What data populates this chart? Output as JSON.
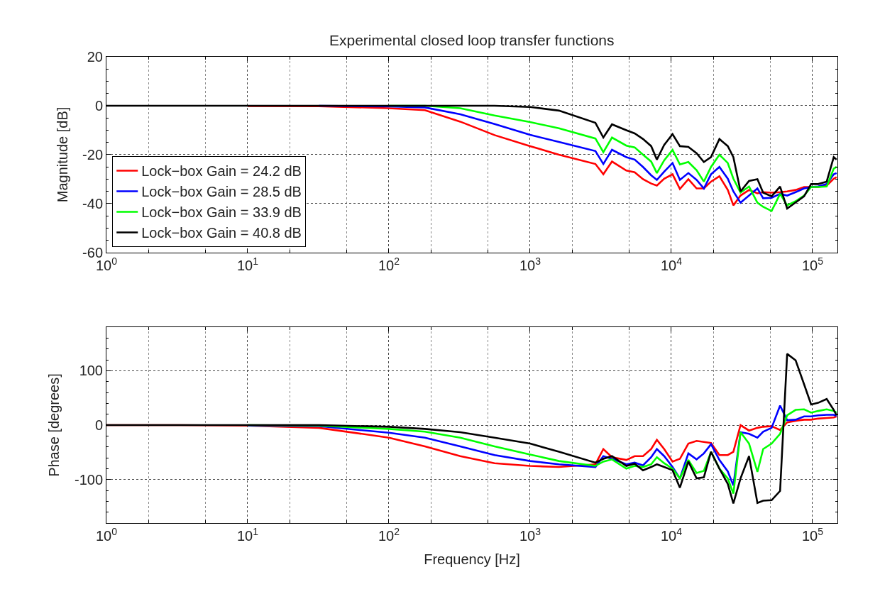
{
  "chart_data": [
    {
      "type": "line",
      "title": "Experimental closed loop transfer functions",
      "ylabel": "Magnitude [dB]",
      "log": "x",
      "grid": true,
      "legend": "bottom left",
      "line_style": "solid",
      "xlim": [
        1,
        150000
      ],
      "xticks": [
        {
          "value": 1,
          "label": "10$^{0}$"
        },
        {
          "value": 10,
          "label": "10$^{1}$"
        },
        {
          "value": 100,
          "label": "10$^{2}$"
        },
        {
          "value": 1000,
          "label": "10$^{3}$"
        },
        {
          "value": 10000,
          "label": "10$^{4}$"
        },
        {
          "value": 100000,
          "label": "10$^{5}$"
        }
      ],
      "ylim": [
        -60,
        20
      ],
      "yticks": [
        -60,
        -40,
        -20,
        0,
        20
      ],
      "x": [
        1,
        3.2,
        10,
        32,
        100,
        180,
        320,
        560,
        1000,
        1600,
        2900,
        3300,
        3800,
        4800,
        5500,
        6300,
        7200,
        7900,
        8900,
        10200,
        11500,
        13200,
        15100,
        17000,
        19100,
        21900,
        25100,
        27500,
        30900,
        35500,
        40700,
        44700,
        51300,
        58900,
        66100,
        75900,
        87100,
        97700,
        109600,
        125900,
        141300,
        147900
      ],
      "series": [
        {
          "name": "Lock−box Gain = 24.2 dB",
          "color": "#ff0000",
          "values": [
            null,
            null,
            -0.1,
            -0.2,
            -1,
            -1.8,
            -6.5,
            -12,
            -16.5,
            -20,
            -23.8,
            -28,
            -22.8,
            -26.5,
            -27.2,
            -30,
            -31.8,
            -32.6,
            -29.8,
            -28,
            -34,
            -30,
            -33.8,
            -33.8,
            -31,
            -28.8,
            -34.4,
            -40.7,
            -36.7,
            -34.4,
            -35.8,
            -35.3,
            -35.5,
            -35.3,
            -35,
            -34.4,
            -33.2,
            -33.2,
            -33.2,
            -32.6,
            -29.8,
            -29.2
          ]
        },
        {
          "name": "Lock−box Gain = 28.5 dB",
          "color": "#0000ff",
          "values": [
            null,
            null,
            null,
            0,
            -0.3,
            -0.7,
            -3.5,
            -7.5,
            -11.9,
            -14.8,
            -18.5,
            -23.8,
            -18,
            -21,
            -22,
            -25,
            -28.4,
            -30.3,
            -26.9,
            -23.4,
            -30.3,
            -27.5,
            -30.3,
            -33.8,
            -28,
            -25,
            -29.8,
            -35,
            -39.6,
            -36.7,
            -33.8,
            -37.8,
            -37.6,
            -36,
            -36.7,
            -35.3,
            -33.8,
            -33.2,
            -33,
            -32,
            -28,
            -27.5
          ]
        },
        {
          "name": "Lock−box Gain = 33.9 dB",
          "color": "#00ff00",
          "values": [
            null,
            null,
            null,
            null,
            0,
            0,
            -1,
            -4,
            -6.7,
            -9.2,
            -13.4,
            -19,
            -13,
            -16.3,
            -17,
            -20,
            -22.8,
            -27.5,
            -22.3,
            -18,
            -24,
            -23,
            -26.3,
            -31,
            -25,
            -20,
            -23.4,
            -29.8,
            -35.5,
            -33,
            -39.6,
            -41.3,
            -43,
            -36,
            -40.7,
            -39,
            -36.7,
            -33.2,
            -33.2,
            -33,
            -25.7,
            -25
          ]
        },
        {
          "name": "Lock−box Gain = 40.8 dB",
          "color": "#000000",
          "values": [
            0,
            0,
            0,
            0,
            0,
            0,
            0,
            0,
            -0.5,
            -2,
            -7,
            -13,
            -7.6,
            -10,
            -11.3,
            -13.6,
            -16.5,
            -22,
            -16,
            -11.6,
            -16.5,
            -16.8,
            -19.4,
            -23,
            -21,
            -13.6,
            -16.5,
            -21,
            -35,
            -30.7,
            -30,
            -35.5,
            -37,
            -33,
            -42,
            -39.5,
            -37,
            -32,
            -32,
            -31,
            -21,
            -22
          ]
        }
      ]
    },
    {
      "type": "line",
      "xlabel": "Frequency [Hz]",
      "ylabel": "Phase [degrees]",
      "log": "x",
      "grid": true,
      "line_style": "solid",
      "xlim": [
        1,
        150000
      ],
      "xticks": [
        {
          "value": 1,
          "label": "10$^{0}$"
        },
        {
          "value": 10,
          "label": "10$^{1}$"
        },
        {
          "value": 100,
          "label": "10$^{2}$"
        },
        {
          "value": 1000,
          "label": "10$^{3}$"
        },
        {
          "value": 10000,
          "label": "10$^{4}$"
        },
        {
          "value": 100000,
          "label": "10$^{5}$"
        }
      ],
      "ylim": [
        -180,
        180
      ],
      "yticks": [
        -100,
        0,
        100
      ],
      "x": [
        1,
        3.2,
        10,
        32,
        100,
        180,
        320,
        560,
        1000,
        1600,
        2900,
        3300,
        3800,
        4800,
        5500,
        6300,
        7200,
        7900,
        8900,
        10200,
        11500,
        13200,
        15100,
        17000,
        19100,
        21900,
        25100,
        27500,
        30900,
        35500,
        40700,
        44700,
        51300,
        58900,
        66100,
        75900,
        87100,
        97700,
        109600,
        125900,
        141300,
        147900
      ],
      "series": [
        {
          "color": "#ff0000",
          "values": [
            0,
            0,
            -1,
            -5,
            -23,
            -39,
            -57,
            -70,
            -75,
            -77,
            -72,
            -44,
            -59,
            -64,
            -57,
            -57,
            -44,
            -27,
            -44,
            -67,
            -62,
            -34,
            -29,
            -31,
            -33,
            -55,
            -55,
            -49,
            0,
            -10,
            -5,
            -3,
            -2,
            -9,
            5,
            8,
            10,
            10,
            12,
            13,
            14,
            16
          ]
        },
        {
          "color": "#0000ff",
          "values": [
            null,
            null,
            -1,
            -2,
            -14,
            -23,
            -39,
            -55,
            -66,
            -72,
            -77,
            -57,
            -62,
            -72,
            -69,
            -74,
            -59,
            -44,
            -57,
            -77,
            -98,
            -52,
            -63,
            -52,
            -35,
            -64,
            -85,
            -111,
            -13,
            -16,
            -23,
            -12,
            -5,
            36,
            9,
            10,
            16,
            16,
            18,
            19,
            19,
            17
          ]
        },
        {
          "color": "#00ff00",
          "values": [
            null,
            null,
            0,
            -1,
            -7,
            -12,
            -23,
            -39,
            -54,
            -66,
            -75,
            -67,
            -63,
            -80,
            -75,
            -77,
            -72,
            -59,
            -70,
            -80,
            -98,
            -64,
            -88,
            -84,
            -49,
            -80,
            -98,
            -126,
            -13,
            -34,
            -86,
            -44,
            -34,
            -16,
            18,
            28,
            29,
            23,
            26,
            29,
            26,
            23
          ]
        },
        {
          "color": "#000000",
          "values": [
            0,
            0,
            0,
            0,
            -3,
            -7,
            -13,
            -23,
            -34,
            -49,
            -69,
            -62,
            -57,
            -75,
            -71,
            -83,
            -77,
            -72,
            -77,
            -83,
            -115,
            -67,
            -98,
            -96,
            -49,
            -80,
            -108,
            -144,
            -98,
            -57,
            -143,
            -139,
            -138,
            -121,
            131,
            119,
            75,
            38,
            41,
            48,
            28,
            18
          ]
        }
      ]
    }
  ]
}
